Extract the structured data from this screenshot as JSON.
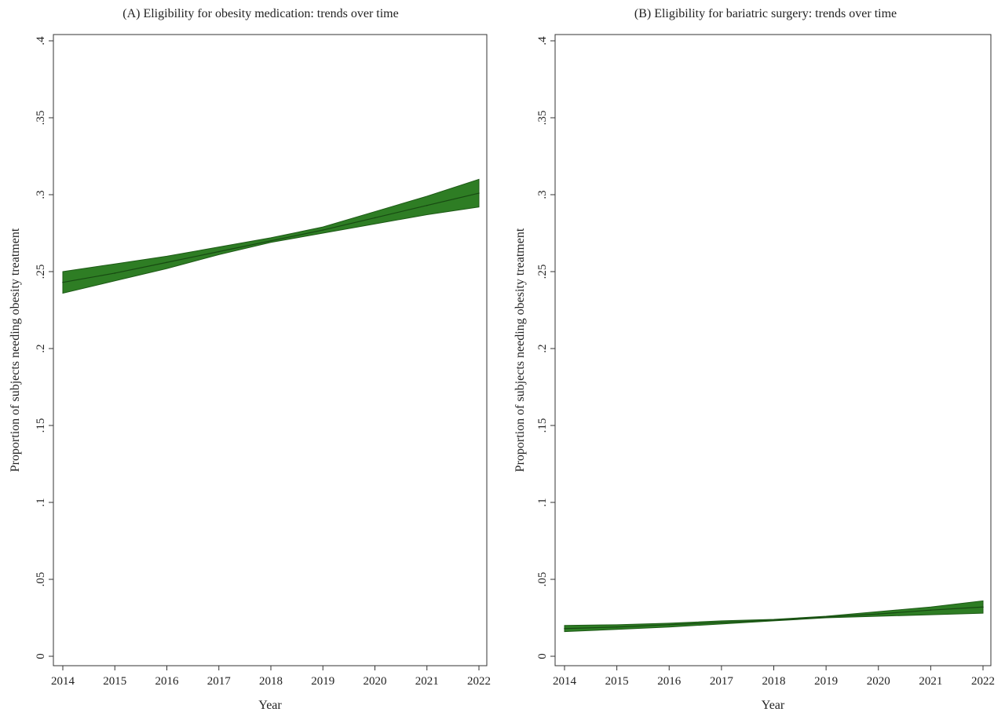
{
  "chart_data": [
    {
      "type": "area",
      "title": "(A) Eligibility for obesity medication: trends over time",
      "xlabel": "Year",
      "ylabel": "Proportion of subjects needing obesity treatment",
      "x": [
        2014,
        2015,
        2016,
        2017,
        2018,
        2019,
        2020,
        2021,
        2022
      ],
      "xlim": [
        2014,
        2022
      ],
      "ylim": [
        0,
        0.4
      ],
      "yticks": [
        0,
        0.05,
        0.1,
        0.15,
        0.2,
        0.25,
        0.3,
        0.35,
        0.4
      ],
      "yticklabels": [
        "0",
        ".05",
        ".1",
        ".15",
        ".2",
        ".25",
        ".3",
        ".35",
        ".4"
      ],
      "xticklabels": [
        "2014",
        "2015",
        "2016",
        "2017",
        "2018",
        "2019",
        "2020",
        "2021",
        "2022"
      ],
      "grid": false,
      "color": "#2e7d24",
      "series": [
        {
          "values": [
            0.243,
            0.249,
            0.256,
            0.263,
            0.27,
            0.277,
            0.285,
            0.293,
            0.301
          ],
          "lower": [
            0.236,
            0.244,
            0.252,
            0.261,
            0.269,
            0.275,
            0.281,
            0.287,
            0.292
          ],
          "upper": [
            0.25,
            0.255,
            0.26,
            0.266,
            0.272,
            0.279,
            0.289,
            0.299,
            0.31
          ]
        }
      ]
    },
    {
      "type": "area",
      "title": "(B) Eligibility for bariatric surgery: trends over time",
      "xlabel": "Year",
      "ylabel": "Proportion of subjects needing obesity treatment",
      "x": [
        2014,
        2015,
        2016,
        2017,
        2018,
        2019,
        2020,
        2021,
        2022
      ],
      "xlim": [
        2014,
        2022
      ],
      "ylim": [
        0,
        0.4
      ],
      "yticks": [
        0,
        0.05,
        0.1,
        0.15,
        0.2,
        0.25,
        0.3,
        0.35,
        0.4
      ],
      "yticklabels": [
        "0",
        ".05",
        ".1",
        ".15",
        ".2",
        ".25",
        ".3",
        ".35",
        ".4"
      ],
      "xticklabels": [
        "2014",
        "2015",
        "2016",
        "2017",
        "2018",
        "2019",
        "2020",
        "2021",
        "2022"
      ],
      "grid": false,
      "color": "#2e7d24",
      "series": [
        {
          "values": [
            0.018,
            0.019,
            0.0205,
            0.022,
            0.0235,
            0.0255,
            0.0275,
            0.03,
            0.032
          ],
          "lower": [
            0.016,
            0.0175,
            0.019,
            0.021,
            0.023,
            0.025,
            0.026,
            0.027,
            0.028
          ],
          "upper": [
            0.02,
            0.0205,
            0.0215,
            0.023,
            0.024,
            0.026,
            0.029,
            0.032,
            0.036
          ]
        }
      ]
    }
  ]
}
